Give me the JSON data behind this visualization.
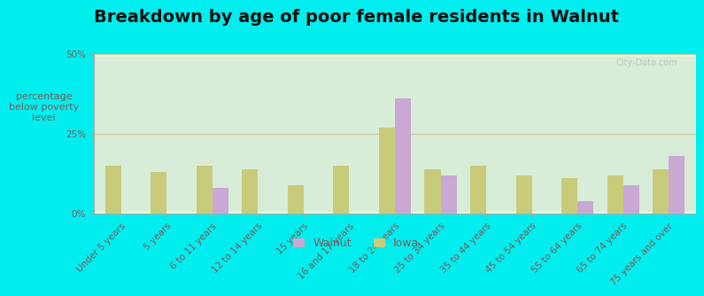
{
  "title": "Breakdown by age of poor female residents in Walnut",
  "ylabel": "percentage\nbelow poverty\nlevel",
  "categories": [
    "Under 5 years",
    "5 years",
    "6 to 11 years",
    "12 to 14 years",
    "15 years",
    "16 and 17 years",
    "18 to 24 years",
    "25 to 34 years",
    "35 to 44 years",
    "45 to 54 years",
    "55 to 64 years",
    "65 to 74 years",
    "75 years and over"
  ],
  "walnut": [
    0,
    0,
    8,
    0,
    0,
    0,
    36,
    12,
    0,
    0,
    4,
    9,
    18
  ],
  "iowa": [
    15,
    13,
    15,
    14,
    9,
    15,
    27,
    14,
    15,
    12,
    11,
    12,
    14
  ],
  "walnut_color": "#c9a8d4",
  "iowa_color": "#c8cc7a",
  "plot_bg_top": "#f0f5e0",
  "plot_bg_bottom": "#d8edd8",
  "outer_bg": "#00eeee",
  "ylim": [
    0,
    50
  ],
  "yticks": [
    0,
    25,
    50
  ],
  "ytick_labels": [
    "0%",
    "25%",
    "50%"
  ],
  "bar_width": 0.35,
  "title_fontsize": 14,
  "ylabel_fontsize": 8,
  "tick_fontsize": 7.5,
  "legend_labels": [
    "Walnut",
    "Iowa"
  ],
  "watermark": "City-Data.com",
  "text_color": "#7a5a5a",
  "grid_color": "#c8cca0"
}
